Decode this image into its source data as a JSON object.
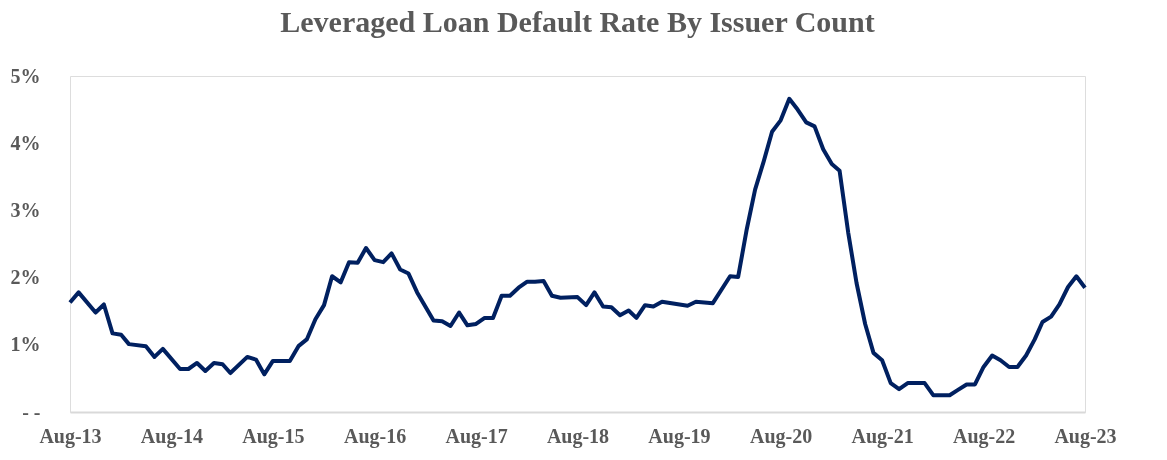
{
  "chart_data": {
    "type": "line",
    "title": "Leveraged Loan Default Rate By Issuer Count",
    "x": [
      "2013-08",
      "2013-09",
      "2013-11",
      "2013-12",
      "2014-01",
      "2014-02",
      "2014-03",
      "2014-05",
      "2014-06",
      "2014-07",
      "2014-09",
      "2014-10",
      "2014-11",
      "2014-12",
      "2015-01",
      "2015-02",
      "2015-03",
      "2015-05",
      "2015-06",
      "2015-07",
      "2015-08",
      "2015-10",
      "2015-11",
      "2015-12",
      "2016-01",
      "2016-02",
      "2016-03",
      "2016-04",
      "2016-05",
      "2016-06",
      "2016-07",
      "2016-08",
      "2016-09",
      "2016-10",
      "2016-11",
      "2016-12",
      "2017-01",
      "2017-03",
      "2017-04",
      "2017-05",
      "2017-06",
      "2017-07",
      "2017-08",
      "2017-09",
      "2017-10",
      "2017-11",
      "2017-12",
      "2018-01",
      "2018-02",
      "2018-03",
      "2018-04",
      "2018-05",
      "2018-06",
      "2018-08",
      "2018-09",
      "2018-10",
      "2018-11",
      "2018-12",
      "2019-01",
      "2019-02",
      "2019-03",
      "2019-04",
      "2019-05",
      "2019-06",
      "2019-09",
      "2019-10",
      "2019-12",
      "2020-02",
      "2020-03",
      "2020-04",
      "2020-05",
      "2020-06",
      "2020-07",
      "2020-08",
      "2020-09",
      "2020-10",
      "2020-11",
      "2020-12",
      "2021-01",
      "2021-02",
      "2021-03",
      "2021-04",
      "2021-05",
      "2021-06",
      "2021-07",
      "2021-08",
      "2021-09",
      "2021-10",
      "2021-11",
      "2022-01",
      "2022-02",
      "2022-04",
      "2022-05",
      "2022-06",
      "2022-07",
      "2022-08",
      "2022-09",
      "2022-10",
      "2022-11",
      "2022-12",
      "2023-01",
      "2023-02",
      "2023-03",
      "2023-04",
      "2023-05",
      "2023-06",
      "2023-07",
      "2023-08"
    ],
    "series": [
      {
        "color": "#002060",
        "values": [
          1.63,
          1.78,
          1.48,
          1.6,
          1.17,
          1.15,
          1.01,
          0.98,
          0.82,
          0.94,
          0.64,
          0.64,
          0.73,
          0.61,
          0.73,
          0.71,
          0.58,
          0.82,
          0.78,
          0.56,
          0.76,
          0.76,
          0.98,
          1.08,
          1.38,
          1.59,
          2.02,
          1.93,
          2.23,
          2.22,
          2.44,
          2.26,
          2.23,
          2.36,
          2.12,
          2.06,
          1.78,
          1.36,
          1.35,
          1.28,
          1.48,
          1.29,
          1.31,
          1.4,
          1.4,
          1.73,
          1.73,
          1.85,
          1.94,
          1.94,
          1.95,
          1.73,
          1.7,
          1.71,
          1.59,
          1.78,
          1.57,
          1.56,
          1.44,
          1.51,
          1.4,
          1.59,
          1.57,
          1.64,
          1.58,
          1.64,
          1.62,
          2.02,
          2.01,
          2.72,
          3.31,
          3.73,
          4.17,
          4.34,
          4.66,
          4.5,
          4.31,
          4.25,
          3.91,
          3.69,
          3.59,
          2.67,
          1.92,
          1.31,
          0.88,
          0.77,
          0.43,
          0.34,
          0.43,
          0.43,
          0.25,
          0.25,
          0.33,
          0.41,
          0.41,
          0.67,
          0.84,
          0.77,
          0.67,
          0.67,
          0.84,
          1.08,
          1.34,
          1.42,
          1.6,
          1.86,
          2.02,
          1.85
        ]
      }
    ],
    "xlim": [
      "2013-08",
      "2023-08"
    ],
    "xticks": [
      {
        "value": "2013-08",
        "label": "Aug-13"
      },
      {
        "value": "2014-08",
        "label": "Aug-14"
      },
      {
        "value": "2015-08",
        "label": "Aug-15"
      },
      {
        "value": "2016-08",
        "label": "Aug-16"
      },
      {
        "value": "2017-08",
        "label": "Aug-17"
      },
      {
        "value": "2018-08",
        "label": "Aug-18"
      },
      {
        "value": "2019-08",
        "label": "Aug-19"
      },
      {
        "value": "2020-08",
        "label": "Aug-20"
      },
      {
        "value": "2021-08",
        "label": "Aug-21"
      },
      {
        "value": "2022-08",
        "label": "Aug-22"
      },
      {
        "value": "2023-08",
        "label": "Aug-23"
      }
    ],
    "ylim": [
      0,
      5
    ],
    "yticks": [
      {
        "value": 0,
        "label": "- -"
      },
      {
        "value": 1,
        "label": "1%"
      },
      {
        "value": 2,
        "label": "2%"
      },
      {
        "value": 3,
        "label": "3%"
      },
      {
        "value": 4,
        "label": "4%"
      },
      {
        "value": 5,
        "label": "5%"
      }
    ],
    "grid": false,
    "marker": "none",
    "line_style": "solid"
  }
}
